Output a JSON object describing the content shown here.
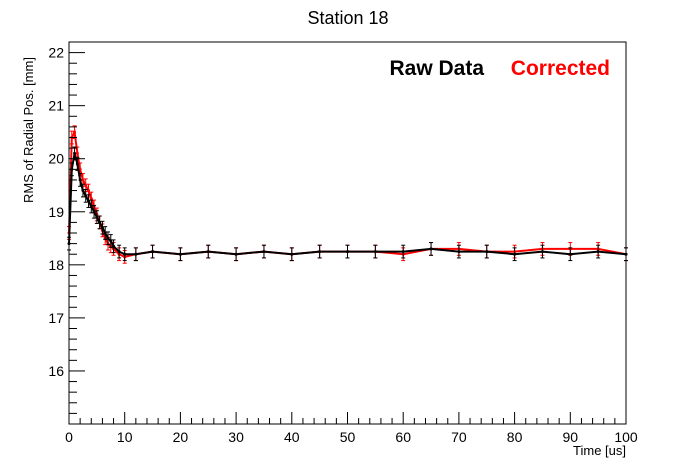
{
  "chart_data": {
    "type": "line",
    "title": "Station 18",
    "xlabel": "Time [us]",
    "ylabel": "RMS of Radial Pos. [mm]",
    "xlim": [
      0,
      100
    ],
    "ylim": [
      15.0,
      22.2
    ],
    "x_ticks": [
      0,
      10,
      20,
      30,
      40,
      50,
      60,
      70,
      80,
      90,
      100
    ],
    "y_ticks": [
      16,
      17,
      18,
      19,
      20,
      21,
      22
    ],
    "grid": false,
    "legend_placement": "top-right",
    "error_bar_halfwidth": 0.12,
    "series": [
      {
        "name": "Raw Data",
        "color": "#000000",
        "x": [
          0,
          0.5,
          1,
          1.5,
          2,
          2.5,
          3,
          3.5,
          4,
          4.5,
          5,
          5.5,
          6,
          6.5,
          7,
          7.5,
          8,
          9,
          10,
          12,
          15,
          20,
          25,
          30,
          35,
          40,
          45,
          50,
          55,
          60,
          65,
          70,
          75,
          80,
          85,
          90,
          95,
          100
        ],
        "values": [
          18.4,
          19.8,
          20.1,
          19.9,
          19.6,
          19.4,
          19.3,
          19.2,
          19.1,
          19.0,
          18.9,
          18.8,
          18.7,
          18.6,
          18.5,
          18.45,
          18.35,
          18.25,
          18.2,
          18.2,
          18.25,
          18.2,
          18.25,
          18.2,
          18.25,
          18.2,
          18.25,
          18.25,
          18.25,
          18.25,
          18.3,
          18.25,
          18.25,
          18.2,
          18.25,
          18.2,
          18.25,
          18.2
        ]
      },
      {
        "name": "Corrected",
        "color": "#ff0000",
        "x": [
          0,
          0.5,
          1,
          1.5,
          2,
          2.5,
          3,
          3.5,
          4,
          4.5,
          5,
          5.5,
          6,
          6.5,
          7,
          7.5,
          8,
          9,
          10,
          12,
          15,
          20,
          25,
          30,
          35,
          40,
          45,
          50,
          55,
          60,
          65,
          70,
          75,
          80,
          85,
          90,
          95,
          100
        ],
        "values": [
          18.6,
          20.4,
          20.5,
          20.1,
          19.8,
          19.6,
          19.5,
          19.4,
          19.25,
          19.1,
          18.95,
          18.8,
          18.65,
          18.5,
          18.4,
          18.35,
          18.3,
          18.2,
          18.15,
          18.2,
          18.25,
          18.2,
          18.25,
          18.2,
          18.25,
          18.2,
          18.25,
          18.25,
          18.25,
          18.2,
          18.3,
          18.3,
          18.25,
          18.25,
          18.3,
          18.3,
          18.3,
          18.2
        ]
      }
    ]
  }
}
